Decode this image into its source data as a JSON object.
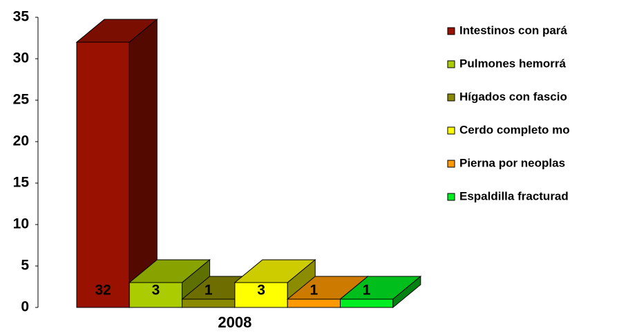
{
  "chart_data": {
    "type": "bar",
    "categories": [
      "2008"
    ],
    "series": [
      {
        "name": "Intestinos con pará",
        "color": "#991100",
        "values": [
          32
        ]
      },
      {
        "name": "Pulmones hemorrá",
        "color": "#aacc00",
        "values": [
          3
        ]
      },
      {
        "name": "Hígados con fascio",
        "color": "#8a8a00",
        "values": [
          1
        ]
      },
      {
        "name": "Cerdo completo mo",
        "color": "#ffff00",
        "values": [
          3
        ]
      },
      {
        "name": "Pierna por neoplas",
        "color": "#ff9900",
        "values": [
          1
        ]
      },
      {
        "name": "Espaldilla fracturad",
        "color": "#00ee22",
        "values": [
          1
        ]
      }
    ],
    "ylim": [
      0,
      35
    ],
    "yticks": [
      0,
      5,
      10,
      15,
      20,
      25,
      30,
      35
    ],
    "legend": "right"
  }
}
